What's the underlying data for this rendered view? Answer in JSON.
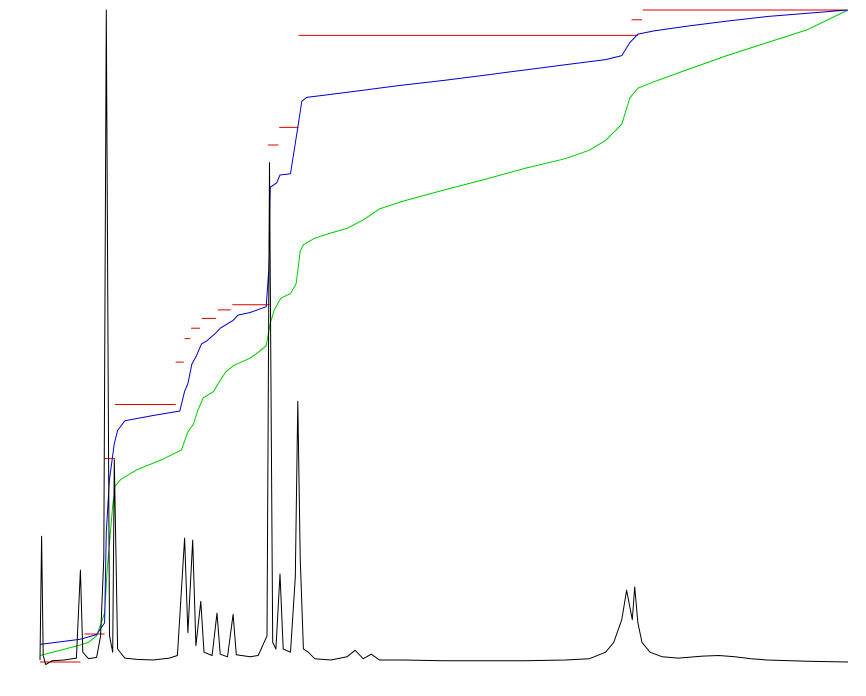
{
  "chart_data": {
    "type": "line",
    "title": "",
    "xlabel": "",
    "ylabel": "",
    "grid": false,
    "legend": "none",
    "xlim": [
      0,
      100
    ],
    "ylim": [
      0,
      100
    ],
    "series": [
      {
        "id": "spectrum",
        "color": "#000000",
        "points": [
          [
            0,
            0.3
          ],
          [
            0.2,
            19.3
          ],
          [
            0.4,
            1.0
          ],
          [
            0.7,
            -0.4
          ],
          [
            1.5,
            0.2
          ],
          [
            3.0,
            0.3
          ],
          [
            4.5,
            0.6
          ],
          [
            5.0,
            14.1
          ],
          [
            5.3,
            1.5
          ],
          [
            6.0,
            0.5
          ],
          [
            7.0,
            0.7
          ],
          [
            7.5,
            4.0
          ],
          [
            7.9,
            16.0
          ],
          [
            8.2,
            100
          ],
          [
            8.6,
            4.0
          ],
          [
            9.0,
            1.5
          ],
          [
            9.2,
            31.0
          ],
          [
            9.6,
            2.0
          ],
          [
            10.5,
            0.6
          ],
          [
            12,
            0.4
          ],
          [
            14,
            0.3
          ],
          [
            16,
            0.6
          ],
          [
            17,
            1.0
          ],
          [
            17.9,
            19.0
          ],
          [
            18.3,
            4.5
          ],
          [
            18.9,
            18.7
          ],
          [
            19.3,
            2.5
          ],
          [
            19.9,
            9.3
          ],
          [
            20.3,
            1.5
          ],
          [
            21.3,
            1.0
          ],
          [
            21.9,
            7.5
          ],
          [
            22.3,
            1.2
          ],
          [
            23.2,
            0.8
          ],
          [
            23.9,
            7.3
          ],
          [
            24.3,
            1.1
          ],
          [
            26,
            0.8
          ],
          [
            27,
            1.0
          ],
          [
            28.1,
            4.0
          ],
          [
            28.4,
            76.6
          ],
          [
            28.8,
            3.0
          ],
          [
            29.2,
            2.0
          ],
          [
            29.7,
            13.5
          ],
          [
            30.1,
            2.0
          ],
          [
            31,
            1.5
          ],
          [
            31.6,
            13.0
          ],
          [
            31.9,
            40.0
          ],
          [
            32.2,
            16.0
          ],
          [
            32.6,
            2.0
          ],
          [
            33.2,
            1.5
          ],
          [
            34,
            0.5
          ],
          [
            36,
            0.3
          ],
          [
            38,
            0.8
          ],
          [
            39,
            1.8
          ],
          [
            40,
            0.5
          ],
          [
            41,
            1.2
          ],
          [
            42,
            0.3
          ],
          [
            45,
            0.3
          ],
          [
            50,
            0.2
          ],
          [
            55,
            0.2
          ],
          [
            60,
            0.2
          ],
          [
            65,
            0.3
          ],
          [
            68,
            0.5
          ],
          [
            70,
            1.5
          ],
          [
            71,
            3.0
          ],
          [
            72,
            6.5
          ],
          [
            72.6,
            11.0
          ],
          [
            73.3,
            6.5
          ],
          [
            73.6,
            11.5
          ],
          [
            74.0,
            6.0
          ],
          [
            74.5,
            3.0
          ],
          [
            75.5,
            1.5
          ],
          [
            77,
            0.8
          ],
          [
            79,
            0.6
          ],
          [
            82,
            0.9
          ],
          [
            84,
            1.0
          ],
          [
            86,
            0.8
          ],
          [
            88,
            0.5
          ],
          [
            90,
            0.3
          ],
          [
            95,
            0.1
          ],
          [
            100,
            0
          ]
        ]
      },
      {
        "id": "integral-green",
        "color": "#00cc00",
        "points": [
          [
            0,
            1.0
          ],
          [
            5.0,
            2.6
          ],
          [
            6,
            3.0
          ],
          [
            7,
            4.0
          ],
          [
            8.0,
            7.5
          ],
          [
            8.3,
            14.0
          ],
          [
            9.0,
            24.0
          ],
          [
            9.3,
            27.0
          ],
          [
            10,
            28.0
          ],
          [
            12,
            29.5
          ],
          [
            15,
            31.0
          ],
          [
            17.5,
            32.5
          ],
          [
            18.3,
            35.3
          ],
          [
            19,
            36.5
          ],
          [
            19.5,
            38.5
          ],
          [
            20.2,
            40.5
          ],
          [
            21.5,
            41.5
          ],
          [
            22.2,
            43.0
          ],
          [
            23,
            44.5
          ],
          [
            24,
            45.5
          ],
          [
            26,
            46.6
          ],
          [
            27,
            47.5
          ],
          [
            28,
            48.5
          ],
          [
            28.5,
            52.0
          ],
          [
            29,
            54.0
          ],
          [
            29.8,
            55.8
          ],
          [
            31,
            56.5
          ],
          [
            31.7,
            58.0
          ],
          [
            32.2,
            63.0
          ],
          [
            32.6,
            64.0
          ],
          [
            34,
            65.0
          ],
          [
            36,
            65.8
          ],
          [
            38,
            66.5
          ],
          [
            40,
            67.8
          ],
          [
            42,
            69.5
          ],
          [
            45,
            70.7
          ],
          [
            50,
            72.4
          ],
          [
            55,
            74.0
          ],
          [
            60,
            75.7
          ],
          [
            65,
            77.2
          ],
          [
            68,
            78.5
          ],
          [
            70,
            80.0
          ],
          [
            72,
            82.5
          ],
          [
            73,
            86.5
          ],
          [
            74,
            88.0
          ],
          [
            76,
            89.0
          ],
          [
            80,
            90.8
          ],
          [
            85,
            93.0
          ],
          [
            90,
            95.0
          ],
          [
            95,
            97.0
          ],
          [
            100,
            100
          ]
        ]
      },
      {
        "id": "integral-blue",
        "color": "#0000cc",
        "points": [
          [
            0,
            2.7
          ],
          [
            5,
            3.5
          ],
          [
            7,
            4.2
          ],
          [
            8.0,
            6.0
          ],
          [
            8.2,
            20.0
          ],
          [
            8.6,
            28.0
          ],
          [
            9.2,
            33.5
          ],
          [
            9.6,
            35.5
          ],
          [
            10.5,
            37.0
          ],
          [
            14,
            37.8
          ],
          [
            17.3,
            38.5
          ],
          [
            17.9,
            41.5
          ],
          [
            18.3,
            42.7
          ],
          [
            18.8,
            45.7
          ],
          [
            19.3,
            46.8
          ],
          [
            20.0,
            48.8
          ],
          [
            20.6,
            49.2
          ],
          [
            21.8,
            50.5
          ],
          [
            22.3,
            51.2
          ],
          [
            23.9,
            52.4
          ],
          [
            24.5,
            53.2
          ],
          [
            26,
            53.6
          ],
          [
            28.0,
            54.5
          ],
          [
            28.3,
            60.0
          ],
          [
            28.5,
            72.8
          ],
          [
            29.3,
            73.5
          ],
          [
            29.7,
            74.7
          ],
          [
            31.0,
            74.9
          ],
          [
            31.9,
            82.0
          ],
          [
            32.4,
            86.0
          ],
          [
            33,
            86.6
          ],
          [
            35,
            86.9
          ],
          [
            40,
            87.7
          ],
          [
            45,
            88.5
          ],
          [
            50,
            89.2
          ],
          [
            55,
            90.0
          ],
          [
            60,
            90.8
          ],
          [
            65,
            91.6
          ],
          [
            70,
            92.4
          ],
          [
            72.0,
            93.0
          ],
          [
            73.0,
            95.0
          ],
          [
            74.0,
            96.3
          ],
          [
            76,
            96.8
          ],
          [
            80,
            97.5
          ],
          [
            85,
            98.3
          ],
          [
            90,
            99.0
          ],
          [
            95,
            99.5
          ],
          [
            100,
            100
          ]
        ]
      }
    ],
    "integral_levels": {
      "color": "#dd0000",
      "steps": [
        {
          "x0": 0.0,
          "x1": 5.0,
          "y": 0.0
        },
        {
          "x0": 5.5,
          "x1": 8.0,
          "y": 4.3
        },
        {
          "x0": 8.0,
          "x1": 9.3,
          "y": 31.2
        },
        {
          "x0": 9.3,
          "x1": 16.8,
          "y": 39.5
        },
        {
          "x0": 16.8,
          "x1": 17.8,
          "y": 46.0
        },
        {
          "x0": 17.9,
          "x1": 18.6,
          "y": 49.6
        },
        {
          "x0": 18.7,
          "x1": 19.8,
          "y": 51.2
        },
        {
          "x0": 20.0,
          "x1": 21.8,
          "y": 52.7
        },
        {
          "x0": 22.0,
          "x1": 23.6,
          "y": 54.0
        },
        {
          "x0": 23.8,
          "x1": 28.4,
          "y": 54.8
        },
        {
          "x0": 28.2,
          "x1": 29.5,
          "y": 79.3
        },
        {
          "x0": 29.6,
          "x1": 32.0,
          "y": 82.0
        },
        {
          "x0": 32.0,
          "x1": 74.0,
          "y": 96.1
        },
        {
          "x0": 73.2,
          "x1": 74.5,
          "y": 98.5
        },
        {
          "x0": 74.6,
          "x1": 100.0,
          "y": 100.0
        }
      ]
    }
  }
}
